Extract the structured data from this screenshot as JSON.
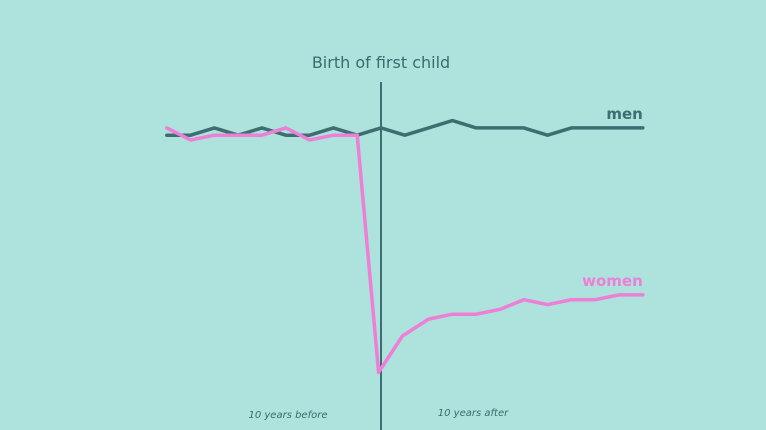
{
  "chart_data": {
    "type": "line",
    "title": "",
    "xlabel": "",
    "ylabel": "",
    "grid": false,
    "event_label": "Birth of first child",
    "event_x": 0,
    "x_range": [
      -9,
      11
    ],
    "y_range": [
      -100,
      20
    ],
    "x_axis_labels": [
      "10 years before",
      "10 years after"
    ],
    "series": [
      {
        "name": "men",
        "color": "#3e6e71",
        "x": [
          -9,
          -8,
          -7,
          -6,
          -5,
          -4,
          -3,
          -2,
          -1,
          0,
          1,
          2,
          3,
          4,
          5,
          6,
          7,
          8,
          9,
          10,
          11
        ],
        "y": [
          2,
          2,
          5,
          2,
          5,
          2,
          2,
          5,
          2,
          5,
          2,
          5,
          8,
          5,
          5,
          5,
          2,
          5,
          5,
          5,
          5
        ]
      },
      {
        "name": "women",
        "color": "#ee7fd6",
        "x": [
          -9,
          -8,
          -7,
          -6,
          -5,
          -4,
          -3,
          -2,
          -1,
          -0.1,
          0.9,
          2,
          3,
          4,
          5,
          6,
          7,
          8,
          9,
          10,
          11
        ],
        "y": [
          5,
          0,
          2,
          2,
          2,
          5,
          0,
          2,
          2,
          -96,
          -81,
          -74,
          -72,
          -72,
          -70,
          -66,
          -68,
          -66,
          -66,
          -64,
          -64
        ]
      }
    ]
  }
}
